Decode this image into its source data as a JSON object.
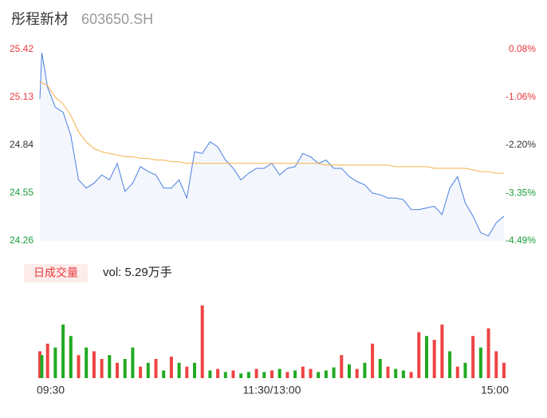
{
  "header": {
    "name": "彤程新材",
    "code": "603650.SH"
  },
  "chart_data": [
    {
      "type": "line",
      "x": [
        0,
        1,
        4,
        8,
        12,
        16,
        20,
        24,
        28,
        32,
        36,
        40,
        44,
        48,
        52,
        56,
        60,
        64,
        68,
        72,
        76,
        80,
        84,
        88,
        92,
        96,
        100,
        104,
        108,
        112,
        116,
        120,
        124,
        128,
        132,
        136,
        140,
        144,
        148,
        152,
        156,
        160,
        164,
        168,
        172,
        176,
        180,
        184,
        188,
        192,
        196,
        200,
        204,
        208,
        212,
        216,
        220,
        224,
        228,
        232,
        236,
        240
      ],
      "xlim": [
        0,
        240
      ],
      "xticks": [
        {
          "value": 0,
          "label": "09:30"
        },
        {
          "value": 120,
          "label": "11:30/13:00"
        },
        {
          "value": 240,
          "label": "15:00"
        }
      ],
      "ylim": [
        24.26,
        25.42
      ],
      "yticks": [
        25.42,
        25.13,
        24.84,
        24.55,
        24.26
      ],
      "ytick_colors": [
        "#e8383d",
        "#e8383d",
        "#333333",
        "#1a9e3c",
        "#1a9e3c"
      ],
      "y2lim": [
        -4.49,
        0.08
      ],
      "y2ticks": [
        {
          "value": 0.08,
          "label": "0.08%"
        },
        {
          "value": -1.06,
          "label": "-1.06%"
        },
        {
          "value": -2.2,
          "label": "-2.20%"
        },
        {
          "value": -3.35,
          "label": "-3.35%"
        },
        {
          "value": -4.49,
          "label": "-4.49%"
        }
      ],
      "y2tick_colors": [
        "#e8383d",
        "#e8383d",
        "#333333",
        "#1a9e3c",
        "#1a9e3c"
      ],
      "series": [
        {
          "color": "#4a7fe0",
          "fill": "#f3f6fd",
          "values": [
            25.12,
            25.4,
            25.19,
            25.07,
            25.04,
            24.9,
            24.63,
            24.58,
            24.61,
            24.66,
            24.63,
            24.73,
            24.56,
            24.61,
            24.71,
            24.68,
            24.66,
            24.58,
            24.58,
            24.63,
            24.52,
            24.8,
            24.79,
            24.86,
            24.83,
            24.75,
            24.7,
            24.63,
            24.67,
            24.7,
            24.7,
            24.73,
            24.66,
            24.7,
            24.71,
            24.79,
            24.77,
            24.73,
            24.75,
            24.7,
            24.7,
            24.65,
            24.62,
            24.6,
            24.55,
            24.54,
            24.52,
            24.52,
            24.51,
            24.45,
            24.45,
            24.46,
            24.47,
            24.42,
            24.58,
            24.65,
            24.49,
            24.41,
            24.31,
            24.29,
            24.37,
            24.41
          ]
        },
        {
          "color": "#f5b24a",
          "values": [
            25.22,
            25.22,
            25.2,
            25.13,
            25.09,
            25.02,
            24.92,
            24.86,
            24.82,
            24.8,
            24.79,
            24.78,
            24.77,
            24.77,
            24.76,
            24.76,
            24.75,
            24.75,
            24.74,
            24.74,
            24.73,
            24.73,
            24.73,
            24.73,
            24.73,
            24.73,
            24.73,
            24.73,
            24.73,
            24.73,
            24.73,
            24.73,
            24.73,
            24.73,
            24.73,
            24.73,
            24.73,
            24.73,
            24.72,
            24.72,
            24.72,
            24.72,
            24.72,
            24.72,
            24.72,
            24.72,
            24.72,
            24.71,
            24.71,
            24.71,
            24.71,
            24.71,
            24.7,
            24.7,
            24.7,
            24.7,
            24.7,
            24.69,
            24.68,
            24.68,
            24.67,
            24.67
          ]
        }
      ]
    },
    {
      "type": "bar",
      "title": "日成交量",
      "subtitle": "vol: 5.29万手",
      "ylim": [
        0,
        100
      ],
      "values": [
        35,
        30,
        45,
        40,
        70,
        55,
        30,
        40,
        35,
        25,
        30,
        20,
        25,
        40,
        15,
        20,
        25,
        10,
        28,
        20,
        15,
        20,
        95,
        10,
        12,
        8,
        10,
        6,
        8,
        12,
        8,
        10,
        12,
        8,
        10,
        15,
        12,
        8,
        10,
        14,
        30,
        18,
        12,
        20,
        45,
        25,
        15,
        12,
        10,
        8,
        60,
        55,
        50,
        70,
        35,
        15,
        20,
        55,
        40,
        65,
        35,
        20
      ],
      "colors": [
        "#ee4444",
        "#22aa22",
        "#ee4444",
        "#22aa22",
        "#22aa22",
        "#22aa22",
        "#ee4444",
        "#22aa22",
        "#ee4444",
        "#ee4444",
        "#22aa22",
        "#ee4444",
        "#22aa22",
        "#22aa22",
        "#ee4444",
        "#22aa22",
        "#ee4444",
        "#22aa22",
        "#ee4444",
        "#22aa22",
        "#ee4444",
        "#22aa22",
        "#ee4444",
        "#22aa22",
        "#ee4444",
        "#22aa22",
        "#ee4444",
        "#22aa22",
        "#22aa22",
        "#ee4444",
        "#22aa22",
        "#ee4444",
        "#22aa22",
        "#ee4444",
        "#22aa22",
        "#ee4444",
        "#ee4444",
        "#22aa22",
        "#22aa22",
        "#22aa22",
        "#ee4444",
        "#22aa22",
        "#ee4444",
        "#22aa22",
        "#ee4444",
        "#22aa22",
        "#ee4444",
        "#22aa22",
        "#22aa22",
        "#ee4444",
        "#ee4444",
        "#22aa22",
        "#ee4444",
        "#ee4444",
        "#22aa22",
        "#ee4444",
        "#22aa22",
        "#ee4444",
        "#22aa22",
        "#ee4444",
        "#ee4444",
        "#ee4444"
      ]
    }
  ]
}
